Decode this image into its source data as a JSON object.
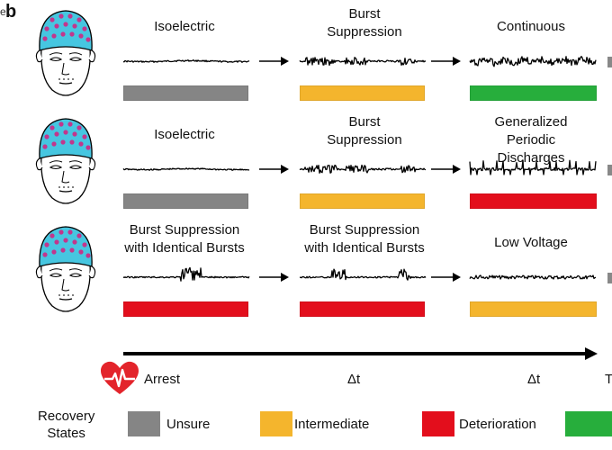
{
  "panel": {
    "letter": "b",
    "edge_text_left": "e",
    "edge_text_right": "T"
  },
  "colors": {
    "unsure": "#858585",
    "intermediate": "#F4B52D",
    "deterioration": "#E30E1C",
    "good": "#27AE3C",
    "cap": "#46C6E0",
    "electrode": "#C2368C",
    "heart": "#E3242B"
  },
  "rows": [
    {
      "stages": [
        {
          "label": "Isoelectric",
          "state": "unsure",
          "wave": "flat"
        },
        {
          "label": "Burst\nSuppression",
          "state": "intermediate",
          "wave": "burst"
        },
        {
          "label": "Continuous",
          "state": "good",
          "wave": "continuous"
        }
      ]
    },
    {
      "stages": [
        {
          "label": "Isoelectric",
          "state": "unsure",
          "wave": "flat"
        },
        {
          "label": "Burst\nSuppression",
          "state": "intermediate",
          "wave": "burst"
        },
        {
          "label": "Generalized Periodic\nDischarges",
          "state": "deterioration",
          "wave": "gpd"
        }
      ]
    },
    {
      "stages": [
        {
          "label": "Burst Suppression\nwith Identical Bursts",
          "state": "deterioration",
          "wave": "identical"
        },
        {
          "label": "Burst Suppression\nwith Identical Bursts",
          "state": "deterioration",
          "wave": "identical2"
        },
        {
          "label": "Low Voltage",
          "state": "intermediate",
          "wave": "lowvoltage"
        }
      ]
    }
  ],
  "timeline": {
    "start_label": "Arrest",
    "step1_label": "Δt",
    "step2_label": "Δt"
  },
  "legend": {
    "title": "Recovery\nStates",
    "items": [
      {
        "label": "Unsure",
        "state": "unsure"
      },
      {
        "label": "Intermediate",
        "state": "intermediate"
      },
      {
        "label": "Deterioration",
        "state": "deterioration"
      },
      {
        "label": "",
        "state": "good"
      }
    ]
  }
}
